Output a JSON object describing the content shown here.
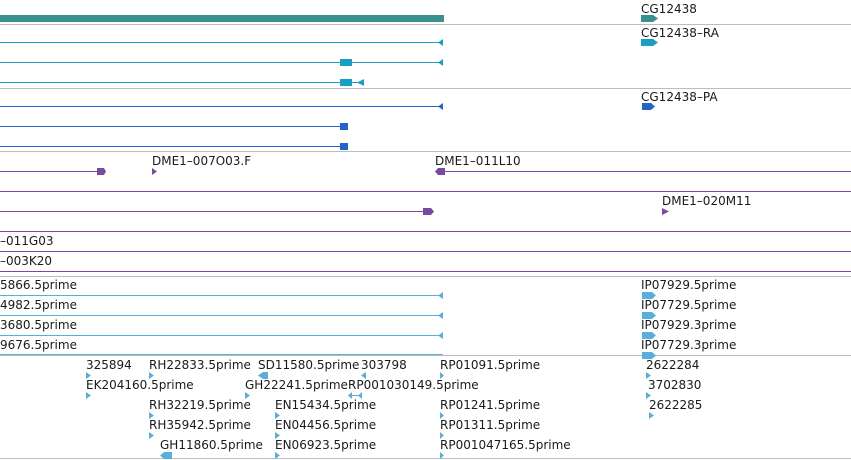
{
  "colors": {
    "gene": "#3a8f8f",
    "cyan": "#1a9fc0",
    "blue": "#2563c9",
    "purple": "#7a4aa0",
    "est": "#5aaedc",
    "divider": "#bdbdbd"
  },
  "gene_labels": {
    "gene": "CG12438",
    "transcript_ra": "CG12438–RA",
    "transcript_pa": "CG12438–PA"
  },
  "clone_labels": {
    "c1": "DME1–007O03.F",
    "c2": "DME1–011L10",
    "c3": "DME1–020M11",
    "c4": "–011G03",
    "c5": "–003K20"
  },
  "est_left": {
    "r1": "5866.5prime",
    "r2": "4982.5prime",
    "r3": "3680.5prime",
    "r4": "9676.5prime"
  },
  "est_right": {
    "r1": "IP07929.5prime",
    "r2": "IP07729.5prime",
    "r3": "IP07929.3prime",
    "r4": "IP07729.3prime"
  },
  "est_grid": {
    "a1": "325894",
    "a2": "RH22833.5prime",
    "a3": "SD11580.5prime",
    "a4": "303798",
    "a5": "RP01091.5prime",
    "a6": "2622284",
    "b1": "EK204160.5prime",
    "b2": "GH22241.5prime",
    "b3": "RP001030149.5prime",
    "b4": "3702830",
    "c1": "RH32219.5prime",
    "c2": "EN15434.5prime",
    "c3": "RP01241.5prime",
    "c4": "2622285",
    "d1": "RH35942.5prime",
    "d2": "EN04456.5prime",
    "d3": "RP01311.5prime",
    "e1": "GH11860.5prime",
    "e2": "EN06923.5prime",
    "e3": "RP001047165.5prime"
  }
}
